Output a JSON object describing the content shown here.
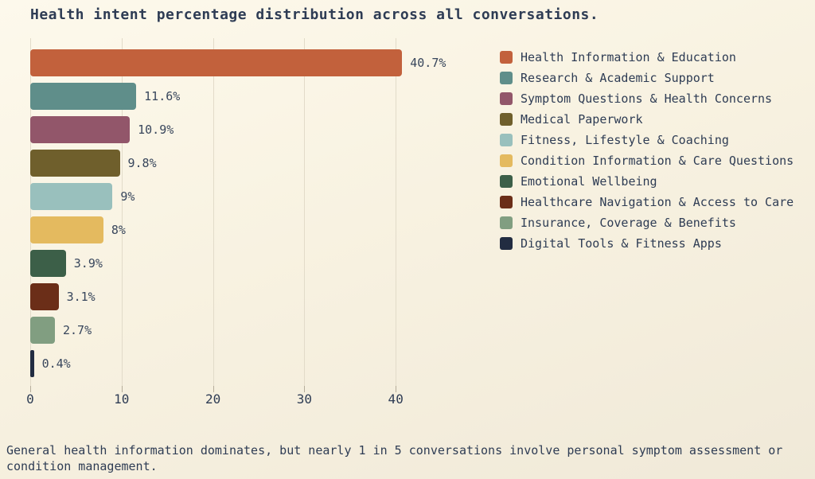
{
  "title": "Health intent percentage distribution across all conversations.",
  "footer_note": "General health information dominates, but nearly 1 in 5 conversations involve personal symptom assessment or condition management.",
  "colors": {
    "background": "#f8f2e1",
    "text": "#2e3c54",
    "gridline": "#e2dbc9",
    "tick": "#b5ad9b"
  },
  "chart_data": {
    "type": "bar",
    "orientation": "horizontal",
    "title": "Health intent percentage distribution across all conversations.",
    "xlabel": "",
    "ylabel": "",
    "xlim": [
      0,
      50
    ],
    "x_ticks": [
      0,
      10,
      20,
      30,
      40
    ],
    "grid": true,
    "legend_position": "upper right",
    "categories": [
      "Health Information & Education",
      "Research & Academic Support",
      "Symptom Questions & Health Concerns",
      "Medical Paperwork",
      "Fitness, Lifestyle & Coaching",
      "Condition Information & Care Questions",
      "Emotional Wellbeing",
      "Healthcare Navigation & Access to Care",
      "Insurance, Coverage & Benefits",
      "Digital Tools & Fitness Apps"
    ],
    "values": [
      40.7,
      11.6,
      10.9,
      9.8,
      9,
      8,
      3.9,
      3.1,
      2.7,
      0.4
    ],
    "value_labels": [
      "40.7%",
      "11.6%",
      "10.9%",
      "9.8%",
      "9%",
      "8%",
      "3.9%",
      "3.1%",
      "2.7%",
      "0.4%"
    ],
    "bar_colors": [
      "#c2613c",
      "#5f8e8a",
      "#92566a",
      "#6f5f2c",
      "#99c0bd",
      "#e4ba5f",
      "#3c5f48",
      "#6b2e18",
      "#819e81",
      "#222c41"
    ]
  }
}
